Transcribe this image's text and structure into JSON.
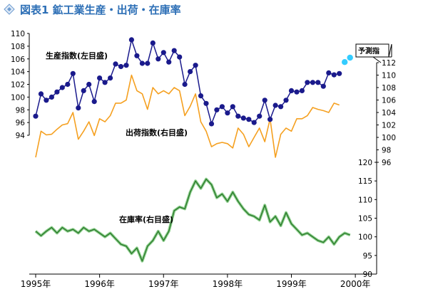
{
  "chart_data": {
    "type": "line",
    "title": "図表1 鉱工業生産・出荷・在庫率",
    "x": {
      "start": "1995-01",
      "months": 64,
      "tick_labels": [
        "1995年",
        "1996年",
        "1997年",
        "1998年",
        "1999年",
        "2000年"
      ],
      "tick_months": [
        "1995-01",
        "1996-01",
        "1997-01",
        "1998-01",
        "1999-01",
        "2000-01"
      ]
    },
    "axes": {
      "production_left": {
        "ylim": [
          94,
          110
        ],
        "ticks": [
          94,
          96,
          98,
          100,
          102,
          104,
          106,
          108,
          110
        ]
      },
      "shipments_right": {
        "ylim": [
          96,
          112
        ],
        "ticks": [
          96,
          98,
          100,
          102,
          104,
          106,
          108,
          110,
          112
        ]
      },
      "inventory_right": {
        "ylim": [
          90,
          120
        ],
        "ticks": [
          90,
          95,
          100,
          105,
          110,
          115,
          120
        ]
      }
    },
    "series": [
      {
        "name": "生産指数(左目盛)",
        "axis": "production_left",
        "color": "#1a1a8c",
        "marker": "circle",
        "values": [
          97.0,
          100.5,
          99.5,
          100.0,
          100.8,
          101.5,
          102.0,
          103.7,
          98.3,
          101.0,
          102.0,
          99.3,
          103.0,
          102.3,
          103.0,
          105.2,
          104.8,
          105.0,
          109.0,
          106.5,
          105.3,
          105.3,
          108.5,
          106.0,
          107.0,
          105.5,
          107.3,
          106.3,
          102.0,
          104.0,
          105.0,
          100.2,
          99.0,
          95.8,
          98.0,
          98.5,
          97.5,
          98.5,
          97.0,
          96.7,
          96.5,
          96.0,
          97.0,
          99.5,
          96.5,
          98.7,
          98.5,
          99.5,
          101.0,
          100.8,
          101.0,
          102.3,
          102.3,
          102.3,
          101.7,
          103.8,
          103.5,
          103.7
        ]
      },
      {
        "name": "予測指数",
        "axis": "production_left",
        "color": "#33ccff",
        "marker": "circle",
        "start_index": 58,
        "values": [
          105.5,
          106.2
        ]
      },
      {
        "name": "出荷指数(右目盛)",
        "axis": "shipments_right",
        "color": "#f5a020",
        "marker": "none",
        "values": [
          96.8,
          101.0,
          100.4,
          100.5,
          101.3,
          102.0,
          102.2,
          104.0,
          99.7,
          101.0,
          102.5,
          100.3,
          103.0,
          102.5,
          103.5,
          105.5,
          105.5,
          106.0,
          110.0,
          107.5,
          107.0,
          104.5,
          108.0,
          107.0,
          107.5,
          107.0,
          108.0,
          107.5,
          103.5,
          105.0,
          107.0,
          102.5,
          101.0,
          98.5,
          99.0,
          99.2,
          99.0,
          98.3,
          101.5,
          100.5,
          98.5,
          100.0,
          101.5,
          99.3,
          103.0,
          96.8,
          100.5,
          101.5,
          101.0,
          103.0,
          103.0,
          103.5,
          104.8,
          104.5,
          104.3,
          104.0,
          105.5,
          105.2
        ]
      },
      {
        "name": "在庫率(右目盛)",
        "axis": "inventory_right",
        "color": "#2a7a2a",
        "marker": "none",
        "values": [
          101.5,
          100.3,
          101.5,
          102.5,
          101.0,
          102.5,
          101.5,
          102.0,
          101.0,
          102.5,
          101.5,
          102.0,
          101.0,
          100.0,
          101.0,
          99.5,
          98.0,
          97.5,
          95.5,
          97.0,
          93.5,
          97.5,
          99.0,
          101.5,
          99.0,
          101.5,
          107.0,
          108.0,
          107.5,
          112.0,
          115.0,
          113.0,
          115.5,
          114.0,
          110.5,
          111.5,
          109.5,
          112.0,
          109.5,
          107.5,
          106.0,
          105.5,
          104.5,
          108.5,
          104.0,
          105.5,
          103.0,
          106.5,
          103.5,
          102.0,
          100.5,
          101.0,
          100.0,
          99.0,
          98.5,
          100.0,
          98.0,
          100.0,
          101.0,
          100.5
        ]
      }
    ],
    "labels": {
      "production": "生産指数(左目盛)",
      "shipments": "出荷指数(右目盛)",
      "inventory": "在庫率(右目盛)",
      "forecast": "予測指",
      "x_end": "2000年"
    },
    "grid": false,
    "legend": "inline"
  }
}
